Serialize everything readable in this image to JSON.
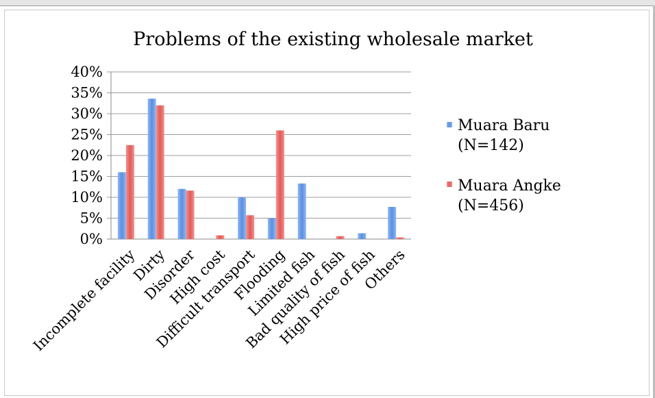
{
  "chart_data": {
    "type": "bar",
    "title": "Problems of the existing wholesale market",
    "categories": [
      "Incomplete facility",
      "Dirty",
      "Disorder",
      "High cost",
      "Difficult transport",
      "Flooding",
      "Limited fish",
      "Bad quality of fish",
      "High price of fish",
      "Others"
    ],
    "series": [
      {
        "name_line1": "Muara Baru",
        "name_line2": "(N=142)",
        "color": "#5b8fe0",
        "values": [
          16,
          33.6,
          12,
          0,
          10,
          5,
          13.3,
          0,
          1.4,
          7.7
        ]
      },
      {
        "name_line1": "Muara Angke",
        "name_line2": "(N=456)",
        "color": "#e8605e",
        "values": [
          22.5,
          32,
          11.6,
          0.9,
          5.7,
          26,
          0,
          0.7,
          0,
          0.4
        ]
      }
    ],
    "yticks": [
      "0%",
      "5%",
      "10%",
      "15%",
      "20%",
      "25%",
      "30%",
      "35%",
      "40%"
    ],
    "ylim": [
      0,
      40
    ],
    "grid": true,
    "legend": "right"
  }
}
